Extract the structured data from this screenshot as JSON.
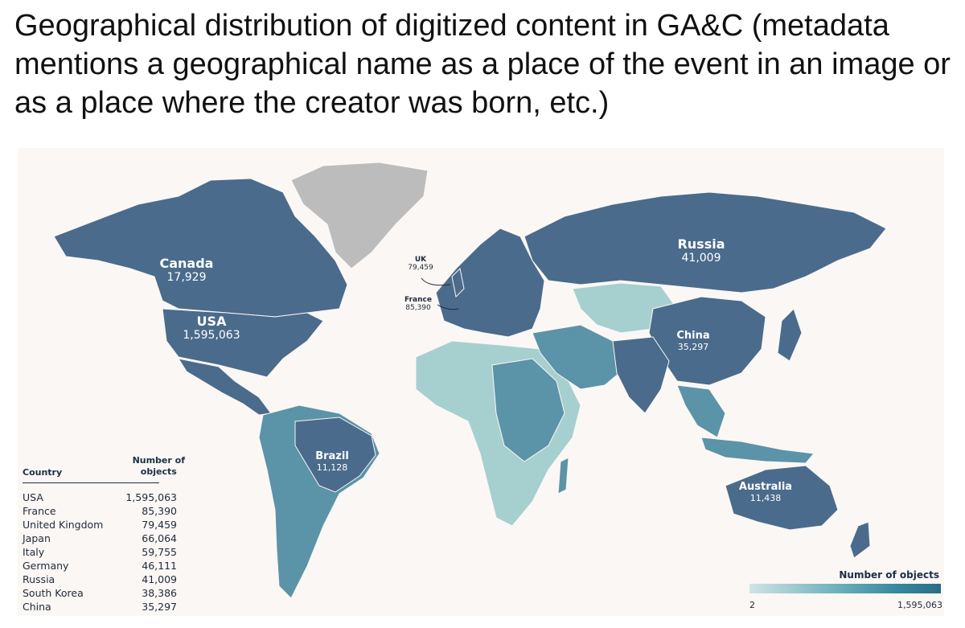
{
  "title": "Geographical distribution of digitized content in GA&C (metadata mentions a geographical name as a place of the event in an image or as a place where the creator was born, etc.)",
  "map": {
    "labels": [
      {
        "id": "canada",
        "name": "Canada",
        "value": "17,929"
      },
      {
        "id": "usa",
        "name": "USA",
        "value": "1,595,063"
      },
      {
        "id": "russia",
        "name": "Russia",
        "value": "41,009"
      },
      {
        "id": "china",
        "name": "China",
        "value": "35,297"
      },
      {
        "id": "brazil",
        "name": "Brazil",
        "value": "11,128"
      },
      {
        "id": "australia",
        "name": "Australia",
        "value": "11,438"
      },
      {
        "id": "uk",
        "name": "UK",
        "value": "79,459"
      },
      {
        "id": "france",
        "name": "France",
        "value": "85,390"
      }
    ],
    "colors": {
      "no_data": "#bcbcbc",
      "high": "#4a6b8c",
      "mid": "#5b93a8",
      "low": "#a6d0cf",
      "ocean": "#fbf7f4"
    }
  },
  "table": {
    "header_country": "Country",
    "header_count_line1": "Number of",
    "header_count_line2": "objects",
    "rows": [
      {
        "country": "USA",
        "count": "1,595,063"
      },
      {
        "country": "France",
        "count": "85,390"
      },
      {
        "country": "United Kingdom",
        "count": "79,459"
      },
      {
        "country": "Japan",
        "count": "66,064"
      },
      {
        "country": "Italy",
        "count": "59,755"
      },
      {
        "country": "Germany",
        "count": "46,111"
      },
      {
        "country": "Russia",
        "count": "41,009"
      },
      {
        "country": "South Korea",
        "count": "38,386"
      },
      {
        "country": "China",
        "count": "35,297"
      }
    ]
  },
  "legend": {
    "title": "Number of objects",
    "min": "2",
    "max": "1,595,063"
  }
}
